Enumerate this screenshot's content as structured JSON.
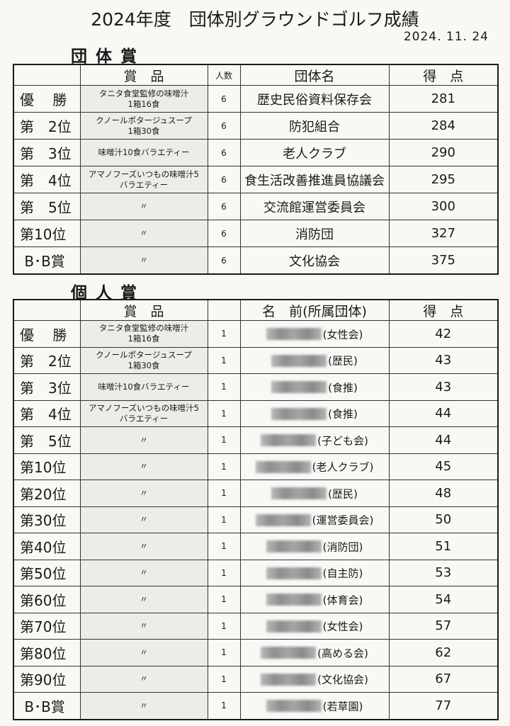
{
  "title": "2024年度　団体別グラウンドゴルフ成績",
  "date": "2024. 11. 24",
  "team_section": {
    "heading": "団体賞",
    "headers": {
      "rank": "",
      "prize": "賞　品",
      "count": "人数",
      "name": "団体名",
      "score": "得　点"
    },
    "rows": [
      {
        "rank": "優　 勝",
        "prize": "タニタ食堂監修の味噌汁\n1箱16食",
        "count": "6",
        "name": "歴史民俗資料保存会",
        "score": "281"
      },
      {
        "rank": "第　2位",
        "prize": "クノールポタージュスープ\n1箱30食",
        "count": "6",
        "name": "防犯組合",
        "score": "284"
      },
      {
        "rank": "第　3位",
        "prize": "味噌汁10食バラエティー",
        "count": "6",
        "name": "老人クラブ",
        "score": "290"
      },
      {
        "rank": "第　4位",
        "prize": "アマノフーズいつもの味噌汁5\nバラエティー",
        "count": "6",
        "name": "食生活改善推進員協議会",
        "score": "295"
      },
      {
        "rank": "第　5位",
        "prize": "〃",
        "count": "6",
        "name": "交流館運営委員会",
        "score": "300"
      },
      {
        "rank": "第10位",
        "prize": "〃",
        "count": "6",
        "name": "消防団",
        "score": "327"
      },
      {
        "rank": " B･B賞",
        "prize": "〃",
        "count": "6",
        "name": "文化協会",
        "score": "375"
      }
    ]
  },
  "individual_section": {
    "heading": "個人賞",
    "headers": {
      "rank": "",
      "prize": "賞　品",
      "count": "",
      "name": "名　前(所属団体)",
      "score": "得　点"
    },
    "rows": [
      {
        "rank": "優　 勝",
        "prize": "タニタ食堂監修の味噌汁\n1箱16食",
        "count": "1",
        "affiliation": "(女性会)",
        "score": "42"
      },
      {
        "rank": "第　2位",
        "prize": "クノールポタージュスープ\n1箱30食",
        "count": "1",
        "affiliation": "(歴民)",
        "score": "43"
      },
      {
        "rank": "第　3位",
        "prize": "味噌汁10食バラエティー",
        "count": "1",
        "affiliation": "(食推)",
        "score": "43"
      },
      {
        "rank": "第　4位",
        "prize": "アマノフーズいつもの味噌汁5\nバラエティー",
        "count": "1",
        "affiliation": "(食推)",
        "score": "44"
      },
      {
        "rank": "第　5位",
        "prize": "〃",
        "count": "1",
        "affiliation": "(子ども会)",
        "score": "44"
      },
      {
        "rank": "第10位",
        "prize": "〃",
        "count": "1",
        "affiliation": "(老人クラブ)",
        "score": "45"
      },
      {
        "rank": "第20位",
        "prize": "〃",
        "count": "1",
        "affiliation": "(歴民)",
        "score": "48"
      },
      {
        "rank": "第30位",
        "prize": "〃",
        "count": "1",
        "affiliation": "(運営委員会)",
        "score": "50"
      },
      {
        "rank": "第40位",
        "prize": "〃",
        "count": "1",
        "affiliation": "(消防団)",
        "score": "51"
      },
      {
        "rank": "第50位",
        "prize": "〃",
        "count": "1",
        "affiliation": "(自主防)",
        "score": "53"
      },
      {
        "rank": "第60位",
        "prize": "〃",
        "count": "1",
        "affiliation": "(体育会)",
        "score": "54"
      },
      {
        "rank": "第70位",
        "prize": "〃",
        "count": "1",
        "affiliation": "(女性会)",
        "score": "57"
      },
      {
        "rank": "第80位",
        "prize": "〃",
        "count": "1",
        "affiliation": "(高める会)",
        "score": "62"
      },
      {
        "rank": "第90位",
        "prize": "〃",
        "count": "1",
        "affiliation": "(文化協会)",
        "score": "67"
      },
      {
        "rank": " B･B賞",
        "prize": "〃",
        "count": "1",
        "affiliation": "(若草園)",
        "score": "77"
      }
    ]
  }
}
